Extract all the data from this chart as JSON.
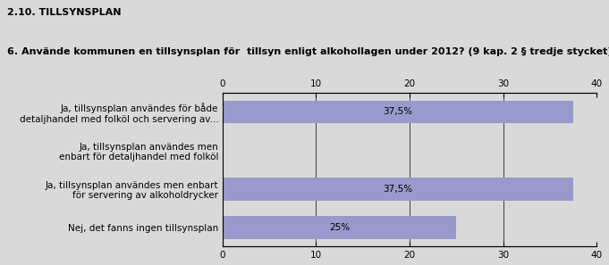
{
  "title_section": "2.10. TILLSYNSPLAN",
  "question": "6. Använde kommunen en tillsynsplan för  tillsyn enligt alkohollagen under 2012? (9 kap. 2 § tredje stycket)",
  "categories": [
    "Ja, tillsynsplan användes för både\ndetaljhandel med folköl och servering av...",
    "Ja, tillsynsplan användes men\nenbart för detaljhandel med folköl",
    "Ja, tillsynsplan användes men enbart\nför servering av alkoholdrycker",
    "Nej, det fanns ingen tillsynsplan"
  ],
  "values": [
    37.5,
    0,
    37.5,
    25
  ],
  "bar_labels": [
    "37,5%",
    "",
    "37,5%",
    "25%"
  ],
  "bar_color": "#9999cc",
  "background_color": "#d9d9d9",
  "plot_background": "#d9d9d9",
  "xlim": [
    0,
    40
  ],
  "xticks": [
    0,
    10,
    20,
    30,
    40
  ],
  "title_fontsize": 8,
  "question_fontsize": 8,
  "tick_fontsize": 7.5,
  "label_fontsize": 7.5,
  "bar_label_fontsize": 7.5
}
